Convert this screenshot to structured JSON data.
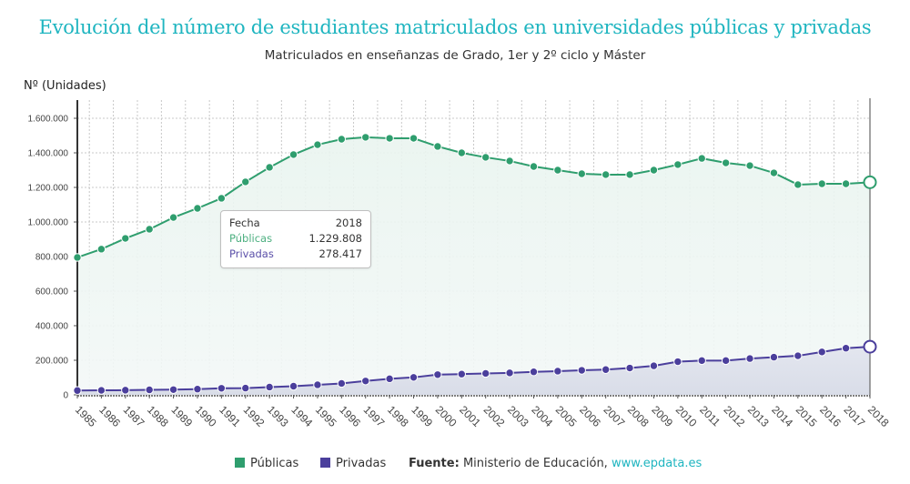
{
  "colors": {
    "title": "#1fb5c0",
    "publicas": "#2f9e6e",
    "privadas": "#4b3f9c",
    "link": "#1fb5c0"
  },
  "tooltip": {
    "fecha_label": "Fecha",
    "fecha_value": "2018",
    "publicas_label": "Públicas",
    "publicas_value": "1.229.808",
    "privadas_label": "Privadas",
    "privadas_value": "278.417"
  },
  "legend": {
    "publicas": "Públicas",
    "privadas": "Privadas",
    "source_label": "Fuente:",
    "source_text": "Ministerio de Educación,",
    "source_link": "www.epdata.es"
  },
  "chart_data": {
    "type": "line",
    "title": "Evolución del número de estudiantes matriculados en universidades públicas y privadas",
    "subtitle": "Matriculados en enseñanzas de Grado, 1er y 2º ciclo y Máster",
    "xlabel": "",
    "ylabel": "Nº (Unidades)",
    "ylim": [
      0,
      1600000
    ],
    "yticks": [
      0,
      200000,
      400000,
      600000,
      800000,
      1000000,
      1200000,
      1400000,
      1600000
    ],
    "ytick_labels": [
      "0",
      "200.000",
      "400.000",
      "600.000",
      "800.000",
      "1.000.000",
      "1.200.000",
      "1.400.000",
      "1.600.000"
    ],
    "grid": true,
    "legend_position": "bottom",
    "x": [
      "1985",
      "1986",
      "1987",
      "1988",
      "1989",
      "1990",
      "1991",
      "1992",
      "1993",
      "1994",
      "1995",
      "1996",
      "1997",
      "1998",
      "1999",
      "2000",
      "2001",
      "2002",
      "2003",
      "2004",
      "2005",
      "2006",
      "2007",
      "2008",
      "2009",
      "2010",
      "2011",
      "2012",
      "2013",
      "2014",
      "2015",
      "2016",
      "2017",
      "2018"
    ],
    "series": [
      {
        "name": "Públicas",
        "values": [
          795000,
          843000,
          905000,
          958000,
          1026000,
          1079000,
          1137000,
          1232000,
          1316000,
          1390000,
          1447000,
          1479000,
          1490000,
          1484000,
          1484000,
          1437000,
          1400000,
          1374000,
          1353000,
          1321000,
          1300000,
          1279000,
          1274000,
          1274000,
          1300000,
          1332000,
          1368000,
          1342000,
          1326000,
          1284000,
          1216000,
          1221000,
          1221000,
          1229808
        ]
      },
      {
        "name": "Privadas",
        "values": [
          25000,
          26000,
          27000,
          29000,
          30000,
          33000,
          38000,
          39000,
          45000,
          50000,
          58000,
          66000,
          80000,
          93000,
          101000,
          117000,
          120000,
          124000,
          127000,
          133000,
          137000,
          142000,
          146000,
          155000,
          168000,
          192000,
          198000,
          198000,
          210000,
          218000,
          226000,
          248000,
          270000,
          278417
        ]
      }
    ],
    "highlighted_x": "2018"
  }
}
